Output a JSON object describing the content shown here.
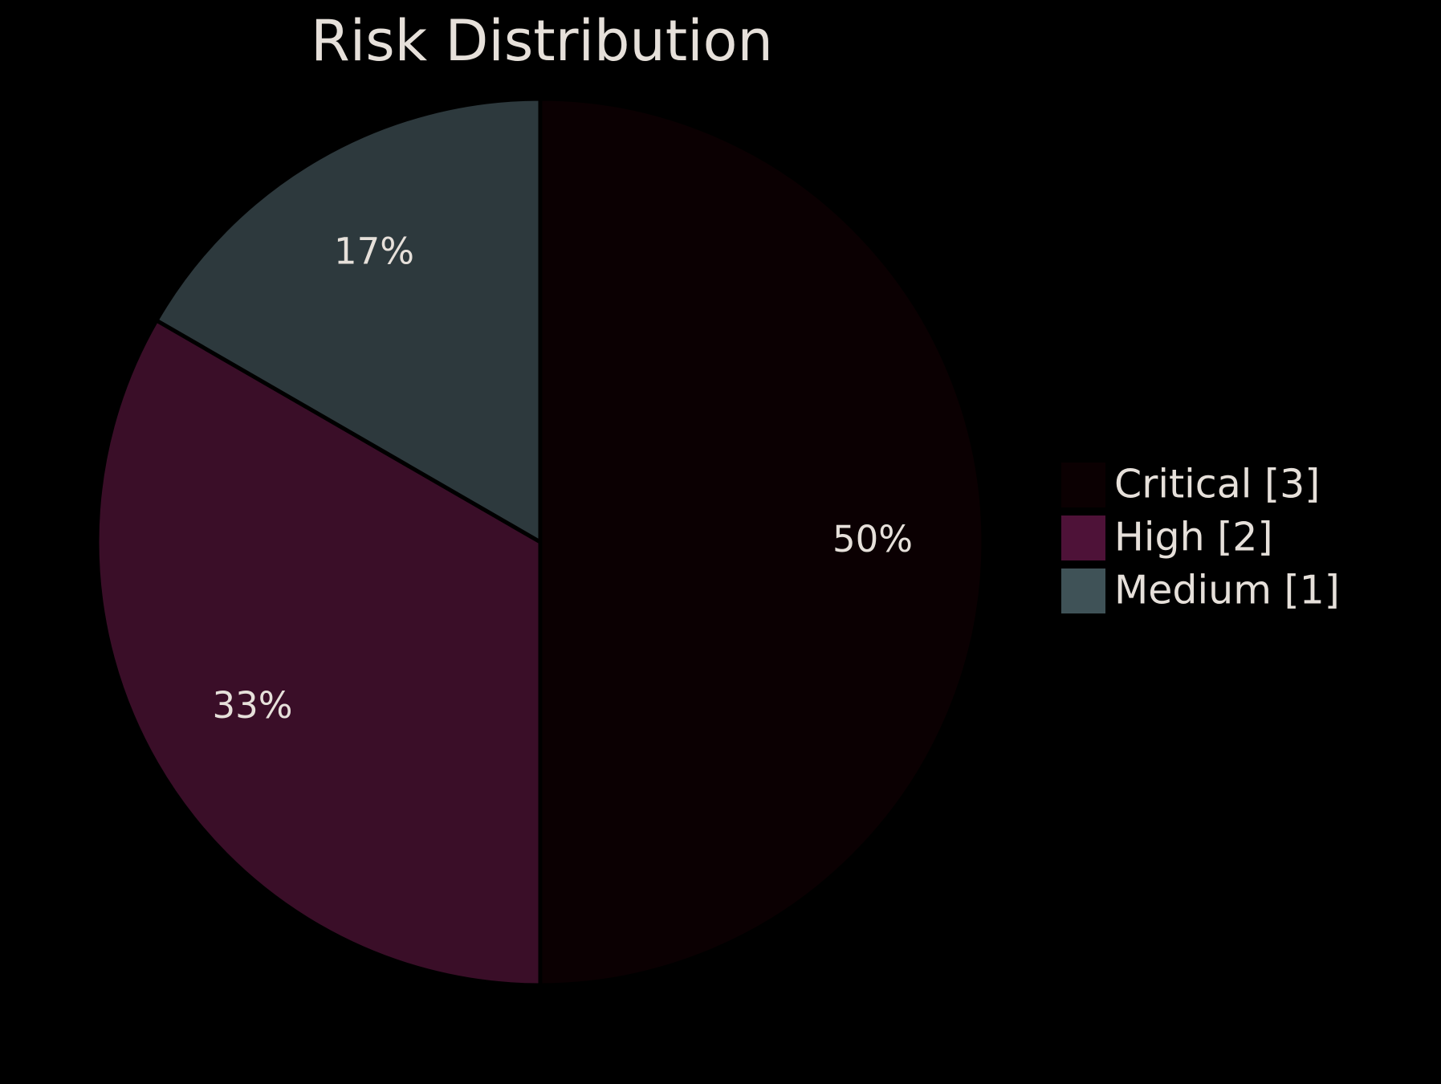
{
  "chart_data": {
    "type": "pie",
    "title": "Risk Distribution",
    "categories": [
      "Critical",
      "High",
      "Medium"
    ],
    "values": [
      3,
      2,
      1
    ],
    "percent_labels": [
      "50%",
      "33%",
      "17%"
    ],
    "legend_labels": [
      "Critical [3]",
      "High [2]",
      "Medium [1]"
    ],
    "colors": [
      "#0b0002",
      "#3a0e28",
      "#2d393d"
    ],
    "legend_colors": [
      "#0b0002",
      "#4e1238",
      "#3f5257"
    ],
    "start_angle": "12 o'clock",
    "direction": "clockwise",
    "legend_placement": "right",
    "background": "#000000",
    "text_color": "#e6e0da"
  }
}
